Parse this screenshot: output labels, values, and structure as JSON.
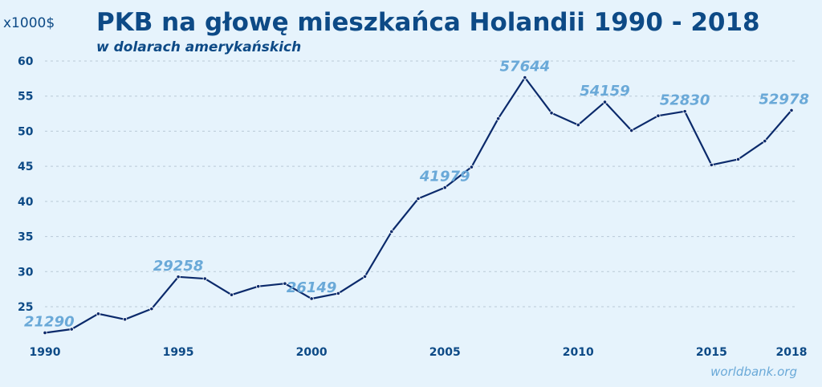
{
  "chart_data": {
    "type": "line",
    "title": "PKB na głowę mieszkańca Holandii 1990 - 2018",
    "subtitle": "w dolarach amerykańskich",
    "y_unit_label": "x1000$",
    "source": "worldbank.org",
    "xlabel": "",
    "ylabel": "",
    "x": [
      1990,
      1991,
      1992,
      1993,
      1994,
      1995,
      1996,
      1997,
      1998,
      1999,
      2000,
      2001,
      2002,
      2003,
      2004,
      2005,
      2006,
      2007,
      2008,
      2009,
      2010,
      2011,
      2012,
      2013,
      2014,
      2015,
      2016,
      2017,
      2018
    ],
    "series": [
      {
        "values": [
          21290,
          21800,
          24000,
          23200,
          24700,
          29258,
          29000,
          26700,
          27900,
          28300,
          26149,
          26900,
          29300,
          35700,
          40400,
          41979,
          44900,
          51800,
          57644,
          52600,
          50900,
          54159,
          50100,
          52200,
          52830,
          45200,
          46000,
          48600,
          52978
        ]
      }
    ],
    "xticks": [
      "1990",
      "1995",
      "2000",
      "2005",
      "2010",
      "2015",
      "2018"
    ],
    "xtick_values": [
      1990,
      1995,
      2000,
      2005,
      2010,
      2015,
      2018
    ],
    "yticks": [
      "25",
      "30",
      "35",
      "40",
      "45",
      "50",
      "55",
      "60"
    ],
    "ytick_values": [
      25,
      30,
      35,
      40,
      45,
      50,
      55,
      60
    ],
    "ylim": [
      21,
      60
    ],
    "xlim": [
      1990,
      2018
    ],
    "grid": true,
    "labeled_points": [
      {
        "x": 1990,
        "text": "21290"
      },
      {
        "x": 1995,
        "text": "29258"
      },
      {
        "x": 2000,
        "text": "26149"
      },
      {
        "x": 2005,
        "text": "41979"
      },
      {
        "x": 2008,
        "text": "57644"
      },
      {
        "x": 2011,
        "text": "54159"
      },
      {
        "x": 2014,
        "text": "52830"
      },
      {
        "x": 2018,
        "text": "52978"
      }
    ],
    "colors": {
      "background": "#e6f3fc",
      "line": "#0b2a6b",
      "title": "#0d4a86",
      "data_label": "#6aa9d8",
      "grid": "#b9c9d6"
    }
  }
}
